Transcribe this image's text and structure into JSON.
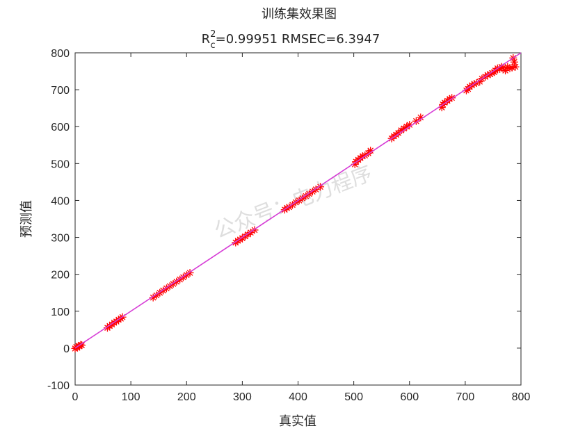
{
  "chart_data": {
    "type": "scatter",
    "title": "训练集效果图",
    "subtitle_parts": {
      "r_base": "R",
      "r_sup": "2",
      "r_sub": "c",
      "rest": "=0.99951   RMSEC=6.3947"
    },
    "xlabel": "真实值",
    "ylabel": "预测值",
    "xlim": [
      0,
      800
    ],
    "ylim": [
      -100,
      800
    ],
    "xticks": [
      0,
      100,
      200,
      300,
      400,
      500,
      600,
      700,
      800
    ],
    "yticks": [
      -100,
      0,
      100,
      200,
      300,
      400,
      500,
      600,
      700,
      800
    ],
    "grid": false,
    "legend": "none",
    "watermark": "公众号：电力程序",
    "colors": {
      "marker": "#ff0000",
      "marker_edge": "#c00000",
      "fit_line": "#d63cd6",
      "axes": "#262626"
    },
    "fit_line": {
      "x": [
        0,
        800
      ],
      "y": [
        0,
        800
      ]
    },
    "series": [
      {
        "marker": "asterisk",
        "points": [
          [
            0,
            -1
          ],
          [
            2,
            3
          ],
          [
            4,
            1
          ],
          [
            6,
            6
          ],
          [
            8,
            5
          ],
          [
            10,
            9
          ],
          [
            12,
            8
          ],
          [
            58,
            55
          ],
          [
            62,
            60
          ],
          [
            66,
            64
          ],
          [
            70,
            69
          ],
          [
            74,
            72
          ],
          [
            78,
            77
          ],
          [
            82,
            80
          ],
          [
            85,
            84
          ],
          [
            140,
            137
          ],
          [
            146,
            143
          ],
          [
            152,
            150
          ],
          [
            158,
            156
          ],
          [
            164,
            162
          ],
          [
            170,
            168
          ],
          [
            176,
            174
          ],
          [
            182,
            180
          ],
          [
            188,
            186
          ],
          [
            194,
            192
          ],
          [
            200,
            198
          ],
          [
            206,
            204
          ],
          [
            288,
            286
          ],
          [
            292,
            291
          ],
          [
            296,
            294
          ],
          [
            300,
            298
          ],
          [
            305,
            303
          ],
          [
            310,
            308
          ],
          [
            315,
            313
          ],
          [
            322,
            320
          ],
          [
            376,
            375
          ],
          [
            380,
            380
          ],
          [
            384,
            382
          ],
          [
            390,
            388
          ],
          [
            396,
            395
          ],
          [
            402,
            400
          ],
          [
            408,
            406
          ],
          [
            414,
            412
          ],
          [
            420,
            418
          ],
          [
            426,
            424
          ],
          [
            432,
            430
          ],
          [
            440,
            437
          ],
          [
            502,
            498
          ],
          [
            504,
            505
          ],
          [
            508,
            510
          ],
          [
            512,
            515
          ],
          [
            516,
            520
          ],
          [
            520,
            522
          ],
          [
            526,
            528
          ],
          [
            530,
            535
          ],
          [
            568,
            568
          ],
          [
            572,
            574
          ],
          [
            576,
            578
          ],
          [
            580,
            583
          ],
          [
            585,
            590
          ],
          [
            590,
            595
          ],
          [
            595,
            600
          ],
          [
            600,
            605
          ],
          [
            612,
            615
          ],
          [
            620,
            625
          ],
          [
            658,
            652
          ],
          [
            660,
            660
          ],
          [
            663,
            665
          ],
          [
            668,
            670
          ],
          [
            672,
            675
          ],
          [
            676,
            678
          ],
          [
            702,
            698
          ],
          [
            705,
            702
          ],
          [
            708,
            708
          ],
          [
            712,
            712
          ],
          [
            716,
            716
          ],
          [
            720,
            718
          ],
          [
            726,
            722
          ],
          [
            730,
            730
          ],
          [
            736,
            735
          ],
          [
            740,
            740
          ],
          [
            745,
            742
          ],
          [
            748,
            745
          ],
          [
            752,
            748
          ],
          [
            754,
            752
          ],
          [
            758,
            758
          ],
          [
            762,
            756
          ],
          [
            765,
            762
          ],
          [
            768,
            760
          ],
          [
            772,
            752
          ],
          [
            776,
            762
          ],
          [
            780,
            758
          ],
          [
            784,
            760
          ],
          [
            788,
            775
          ],
          [
            790,
            762
          ],
          [
            786,
            786
          ]
        ]
      }
    ]
  }
}
